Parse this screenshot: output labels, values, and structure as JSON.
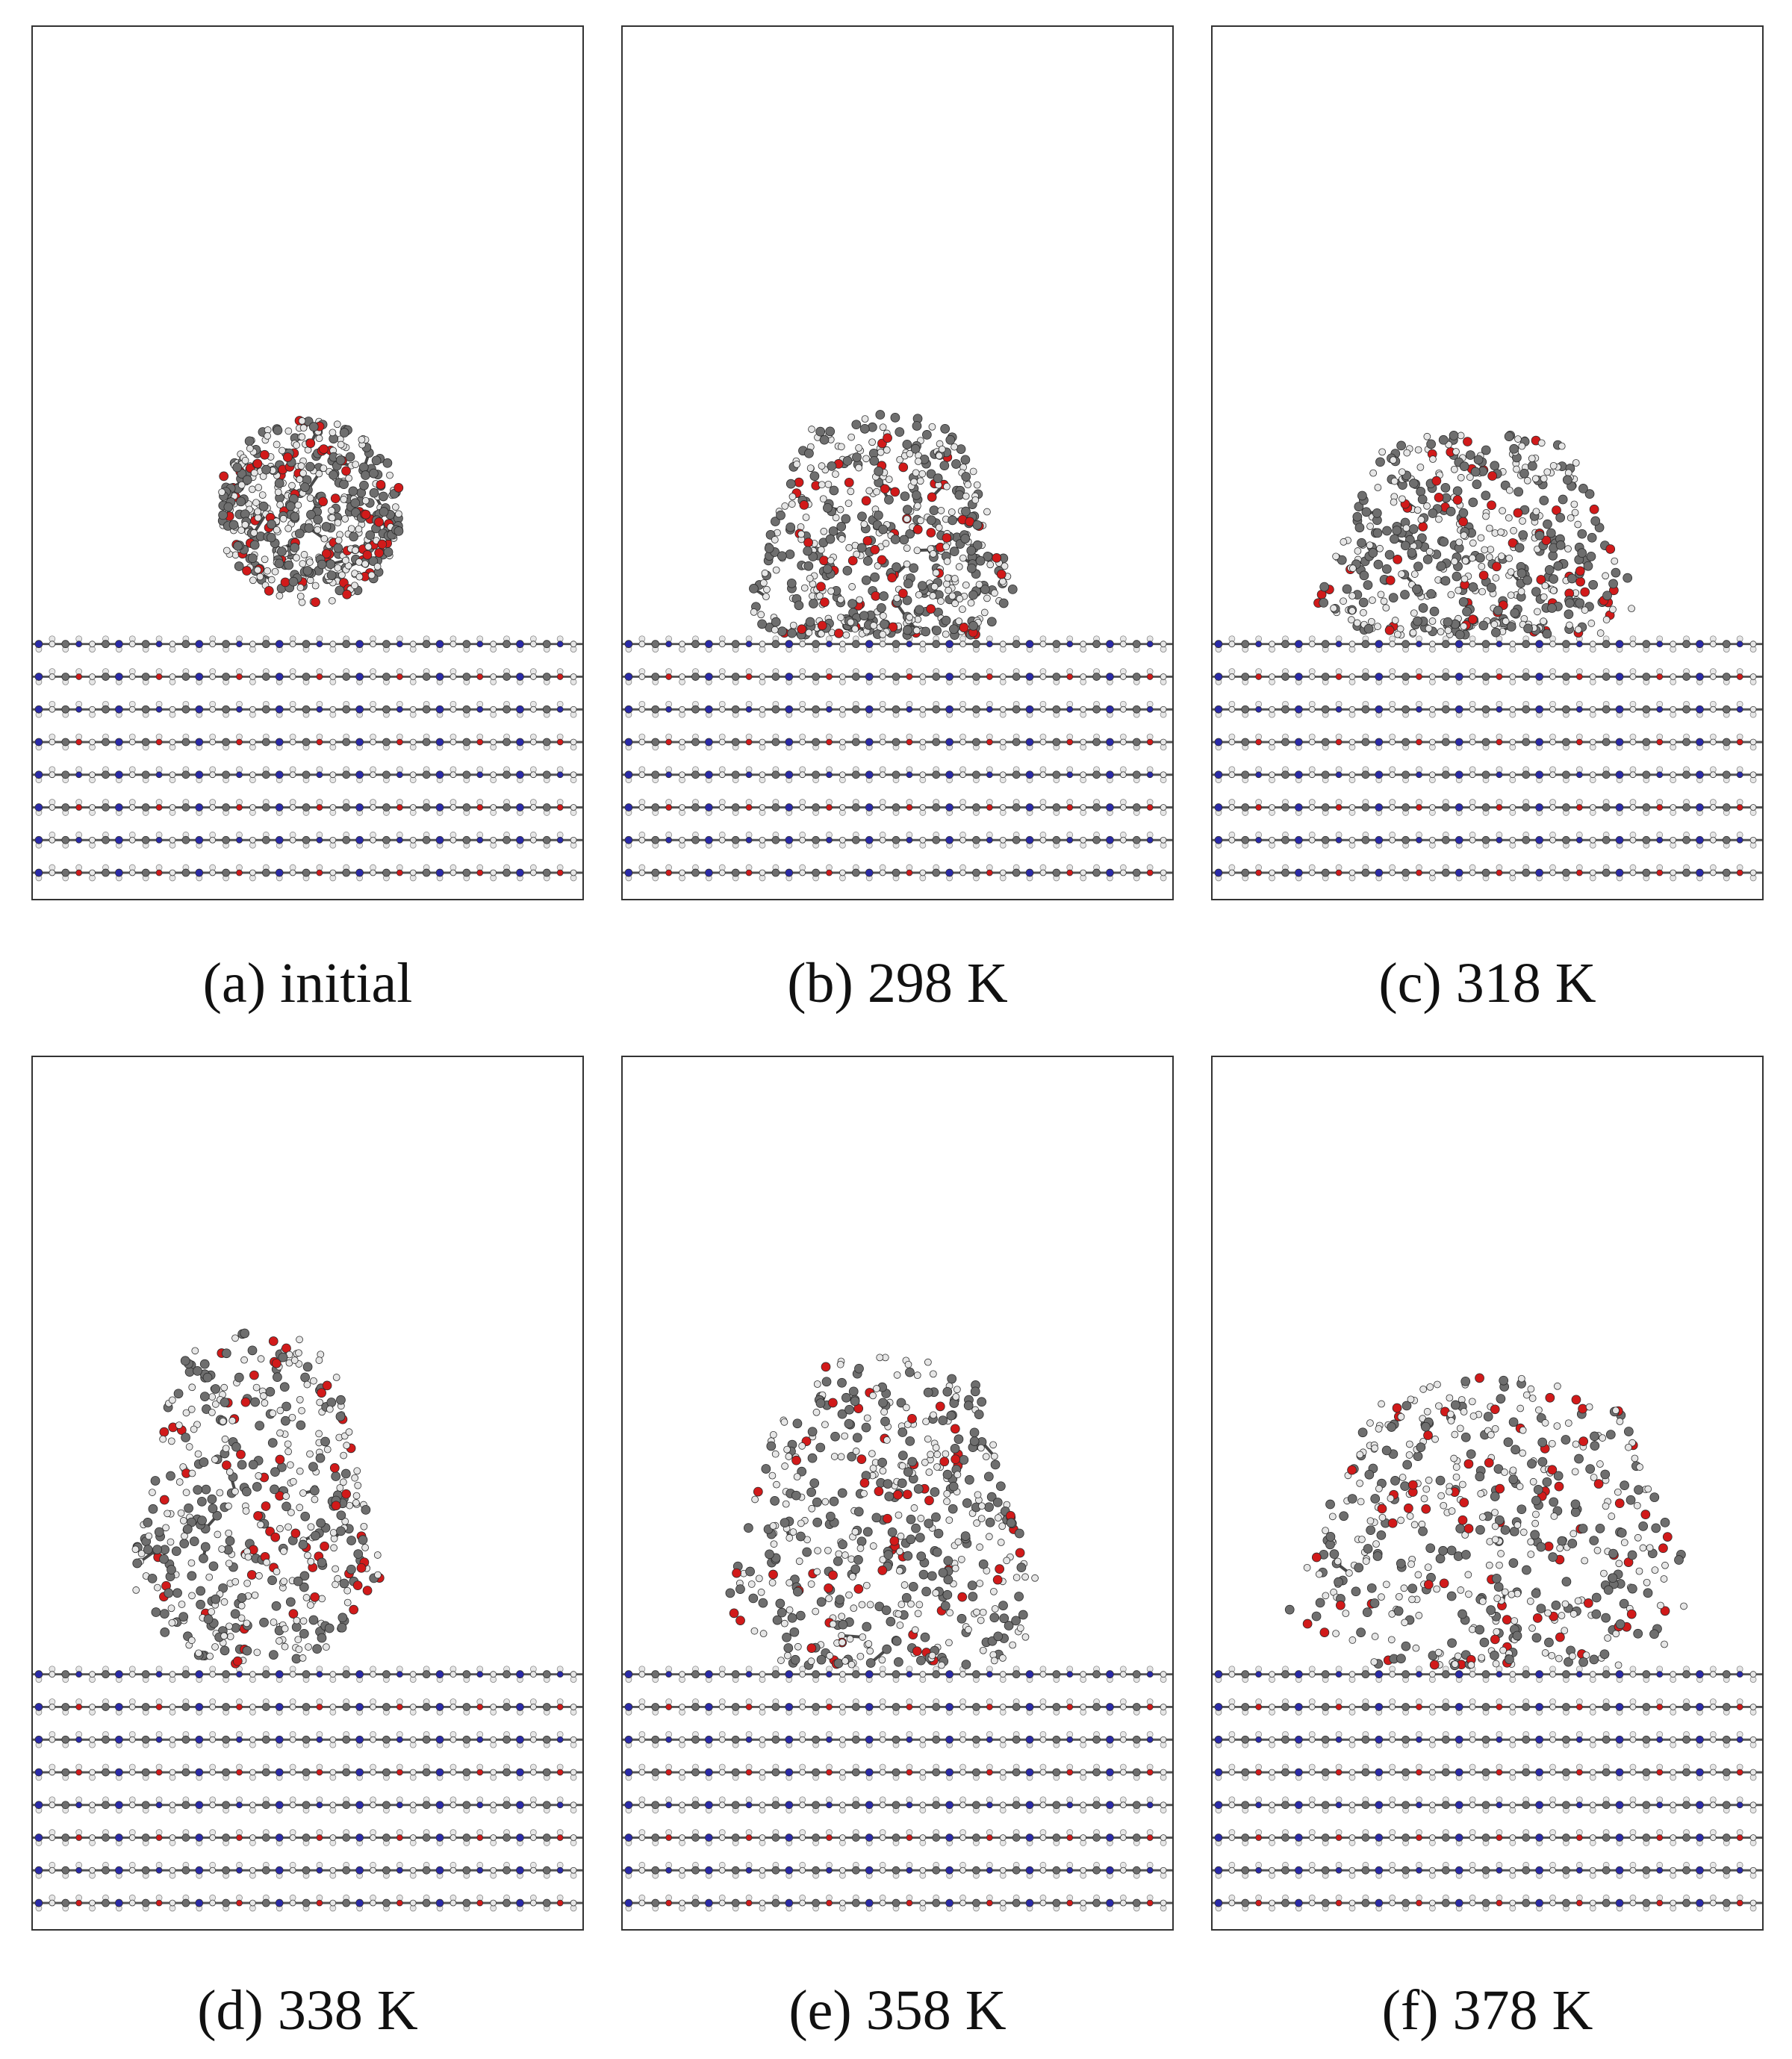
{
  "figure": {
    "panels": [
      {
        "id": "a",
        "caption": "(a) initial",
        "state": "spherical droplet above surface"
      },
      {
        "id": "b",
        "caption": "(b) 298 K",
        "state": "droplet spreading on surface"
      },
      {
        "id": "c",
        "caption": "(c) 318 K",
        "state": "droplet spreading on surface"
      },
      {
        "id": "d",
        "caption": "(d) 338 K",
        "state": "droplet spreading on surface"
      },
      {
        "id": "e",
        "caption": "(e) 358 K",
        "state": "droplet spreading on surface"
      },
      {
        "id": "f",
        "caption": "(f) 378 K",
        "state": "droplet spreading on surface"
      }
    ],
    "colors": {
      "carbon": "#6e6e6e",
      "hydrogen": "#e6e6e6",
      "oxygen": "#d11a1a",
      "nitrogen": "#2a2aa8",
      "frame": "#333333"
    },
    "surface_layers": 8
  }
}
